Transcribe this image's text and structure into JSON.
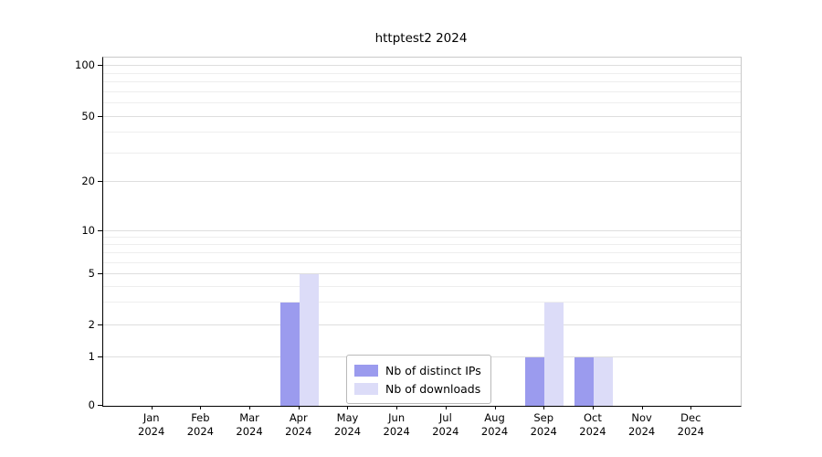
{
  "chart_data": {
    "type": "bar",
    "title": "httptest2 2024",
    "categories": [
      "Jan",
      "Feb",
      "Mar",
      "Apr",
      "May",
      "Jun",
      "Jul",
      "Aug",
      "Sep",
      "Oct",
      "Nov",
      "Dec"
    ],
    "category_year": "2024",
    "series": [
      {
        "name": "Nb of distinct IPs",
        "color": "#9b9bee",
        "values": [
          0,
          0,
          0,
          3,
          0,
          0,
          0,
          0,
          1,
          1,
          0,
          0
        ]
      },
      {
        "name": "Nb of downloads",
        "color": "#dcdcf8",
        "values": [
          0,
          0,
          0,
          5,
          0,
          0,
          0,
          0,
          3,
          1,
          0,
          0
        ]
      }
    ],
    "y_ticks": [
      0,
      1,
      2,
      5,
      10,
      20,
      50,
      100
    ],
    "y_tick_labels": [
      "0",
      "1",
      "2",
      "5",
      "10",
      "20",
      "50",
      "100"
    ],
    "y_scale": "log-like",
    "ylim": [
      0,
      110
    ],
    "grid": "horizontal",
    "legend_position": "bottom-center-inside"
  }
}
